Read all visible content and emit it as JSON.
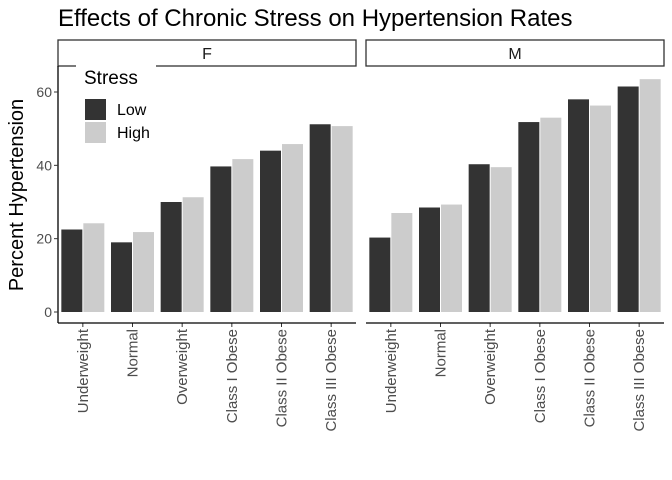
{
  "chart_data": {
    "type": "bar",
    "title": "Effects of Chronic Stress on Hypertension Rates",
    "ylabel": "Percent Hypertension",
    "xlabel": "",
    "ylim": [
      0,
      66
    ],
    "y_ticks": [
      0,
      20,
      40,
      60
    ],
    "grid": false,
    "categories": [
      "Underweight",
      "Normal",
      "Overweight",
      "Class I Obese",
      "Class II Obese",
      "Class III Obese"
    ],
    "legend": {
      "title": "Stress",
      "position": "top-left",
      "entries": [
        {
          "name": "Low",
          "color": "#333333"
        },
        {
          "name": "High",
          "color": "#cccccc"
        }
      ]
    },
    "facets": [
      {
        "label": "F",
        "series": [
          {
            "name": "Low",
            "values": [
              22.5,
              19,
              30,
              39.7,
              44,
              51.2
            ]
          },
          {
            "name": "High",
            "values": [
              24.2,
              21.8,
              31.3,
              41.7,
              45.8,
              50.7
            ]
          }
        ]
      },
      {
        "label": "M",
        "series": [
          {
            "name": "Low",
            "values": [
              20.3,
              28.5,
              40.3,
              51.8,
              58,
              61.5
            ]
          },
          {
            "name": "High",
            "values": [
              27,
              29.3,
              39.5,
              53,
              56.3,
              63.5
            ]
          }
        ]
      }
    ]
  }
}
